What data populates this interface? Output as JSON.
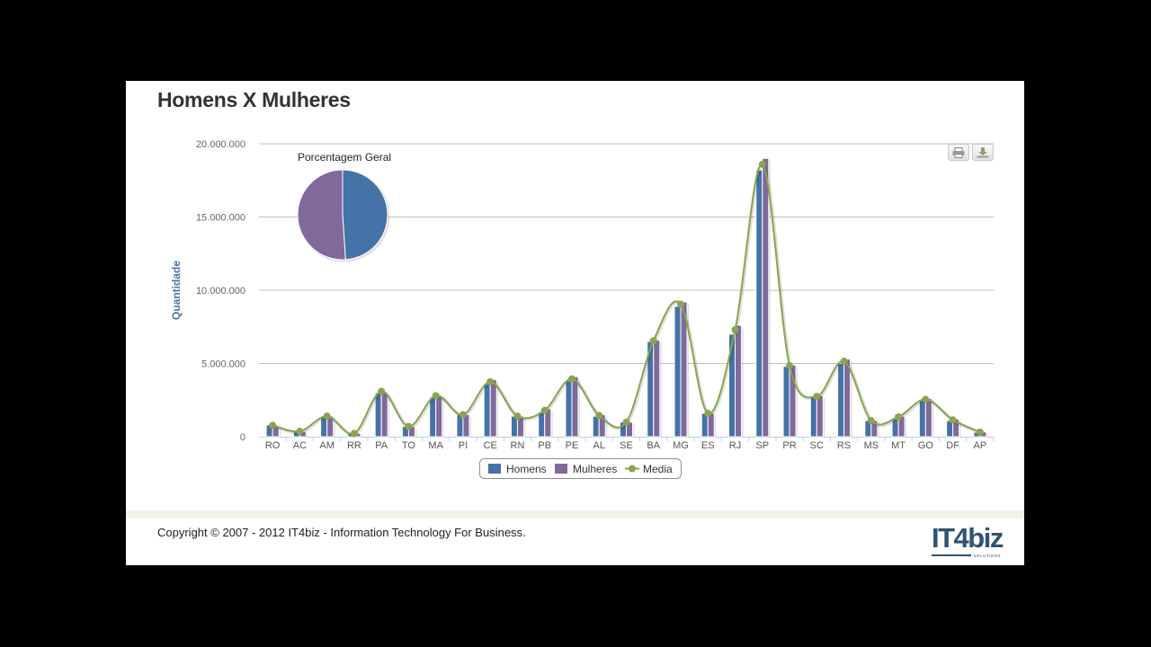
{
  "page": {
    "title": "Homens X Mulheres",
    "copyright": "Copyright © 2007 - 2012 IT4biz - Information Technology For Business.",
    "logo_text": "IT4biz",
    "logo_sub": "IT SOLUTIONS"
  },
  "toolbar": {
    "print_icon": "print-icon",
    "export_icon": "download-icon"
  },
  "chart_data": {
    "type": "bar",
    "ylabel": "Quantidade",
    "xlabel": "",
    "ylim": [
      0,
      20000000
    ],
    "yticks": [
      0,
      5000000,
      10000000,
      15000000,
      20000000
    ],
    "ytick_labels": [
      "0",
      "5.000.000",
      "10.000.000",
      "15.000.000",
      "20.000.000"
    ],
    "categories": [
      "RO",
      "AC",
      "AM",
      "RR",
      "PA",
      "TO",
      "MA",
      "PI",
      "CE",
      "RN",
      "PB",
      "PE",
      "AL",
      "SE",
      "BA",
      "MG",
      "ES",
      "RJ",
      "SP",
      "PR",
      "SC",
      "RS",
      "MS",
      "MT",
      "GO",
      "DF",
      "AP"
    ],
    "series": [
      {
        "name": "Homens",
        "type": "bar",
        "color": "#4572a7",
        "values": [
          800000,
          370000,
          1400000,
          230000,
          3000000,
          700000,
          2700000,
          1500000,
          3600000,
          1400000,
          1700000,
          3800000,
          1400000,
          1000000,
          6500000,
          8900000,
          1600000,
          7000000,
          18200000,
          4800000,
          2700000,
          5000000,
          1100000,
          1300000,
          2500000,
          1100000,
          300000
        ]
      },
      {
        "name": "Mulheres",
        "type": "bar",
        "color": "#80699b",
        "values": [
          760000,
          360000,
          1400000,
          220000,
          3000000,
          690000,
          2800000,
          1500000,
          3900000,
          1400000,
          1900000,
          4100000,
          1500000,
          1000000,
          6600000,
          9200000,
          1600000,
          7600000,
          19000000,
          4900000,
          2800000,
          5300000,
          1100000,
          1400000,
          2600000,
          1200000,
          330000
        ]
      },
      {
        "name": "Media",
        "type": "spline",
        "color": "#89a54e",
        "values": [
          780000,
          365000,
          1400000,
          225000,
          3100000,
          700000,
          2800000,
          1500000,
          3750000,
          1400000,
          1800000,
          3950000,
          1450000,
          1000000,
          6550000,
          9050000,
          1600000,
          7300000,
          18600000,
          4850000,
          2750000,
          5150000,
          1100000,
          1350000,
          2550000,
          1150000,
          315000
        ]
      }
    ],
    "pie": {
      "title": "Porcentagem Geral",
      "slices": [
        {
          "name": "Homens",
          "value": 48.95,
          "color": "#4572a7"
        },
        {
          "name": "Mulheres",
          "value": 51.05,
          "color": "#80699b"
        }
      ]
    },
    "legend": {
      "position": "bottom-center",
      "items": [
        "Homens",
        "Mulheres",
        "Media"
      ]
    },
    "grid": true
  }
}
